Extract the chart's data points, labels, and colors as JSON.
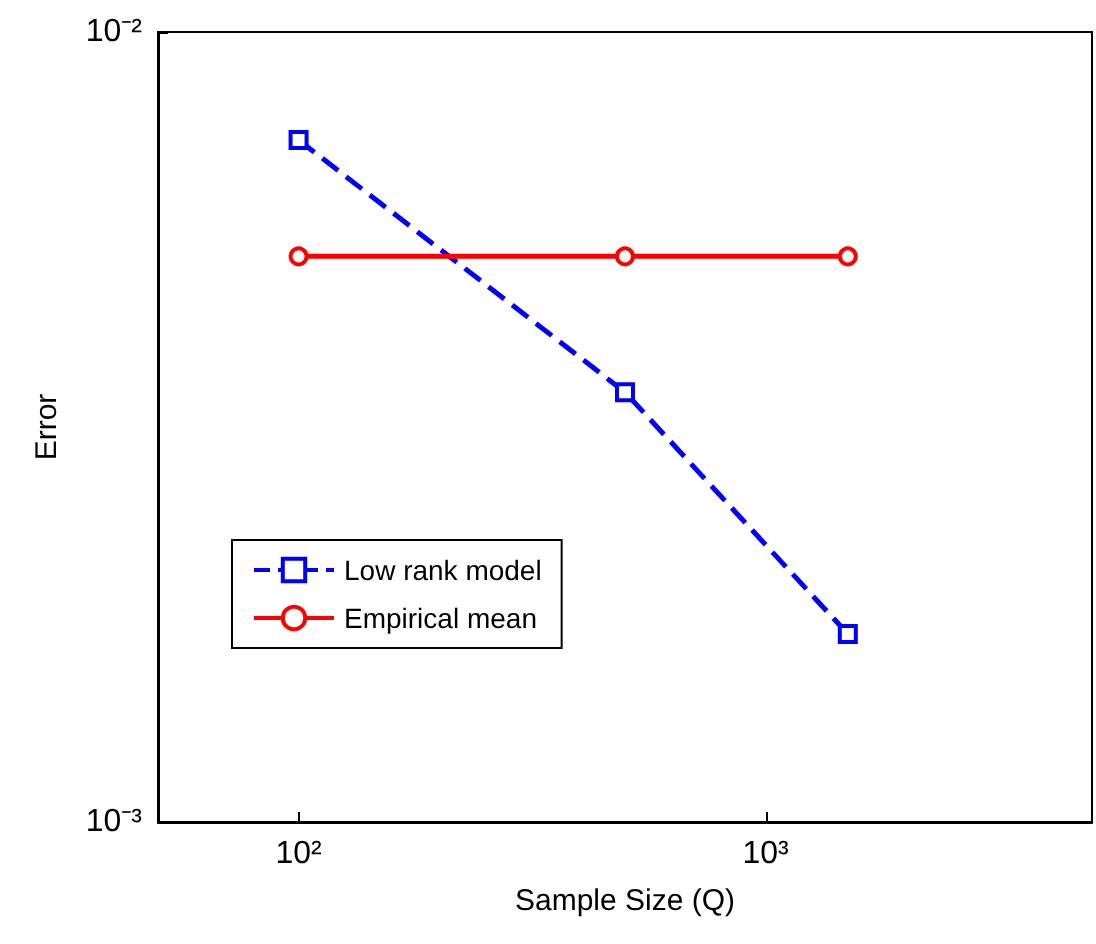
{
  "chart_data": {
    "type": "line",
    "xlabel": "Sample Size (Q)",
    "ylabel": "Error",
    "log": "xy",
    "xlim": [
      50,
      5000
    ],
    "xticks": [
      {
        "value": 100,
        "label": "10²"
      },
      {
        "value": 1000,
        "label": "10³"
      }
    ],
    "ylim": [
      0.001,
      0.01
    ],
    "yticks": [
      {
        "value": 0.001,
        "label": "10⁻³"
      },
      {
        "value": 0.01,
        "label": "10⁻²"
      }
    ],
    "grid": false,
    "legend": "left",
    "series": [
      {
        "name": "Low rank model",
        "color": "#0000ff",
        "x": [
          100,
          500,
          1500
        ],
        "values": [
          0.0073,
          0.0035,
          0.00173
        ],
        "marker": "square",
        "line_style": "dashed"
      },
      {
        "name": "Empirical mean",
        "color": "#ff0000",
        "x": [
          100,
          500,
          1500
        ],
        "values": [
          0.0052,
          0.0052,
          0.0052
        ],
        "marker": "circle",
        "line_style": "solid"
      }
    ]
  }
}
